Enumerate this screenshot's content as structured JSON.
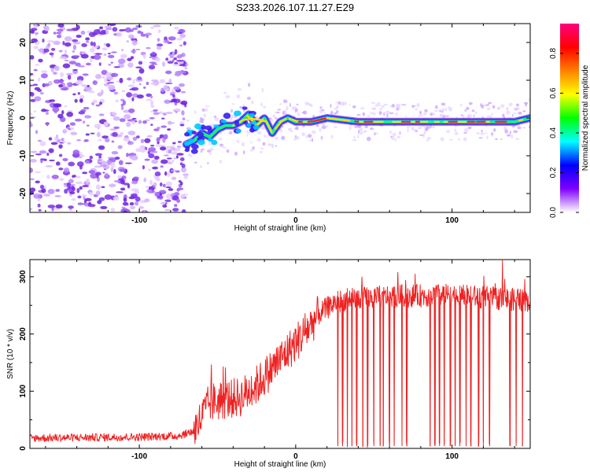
{
  "title": "S233.2026.107.11.27.E29",
  "chart_data": [
    {
      "type": "heatmap",
      "name": "spectrogram",
      "xlabel": "Height of straight line (km)",
      "ylabel": "Frequency (Hz)",
      "xlim": [
        -170,
        150
      ],
      "ylim": [
        -25,
        25
      ],
      "x_ticks": [
        -100,
        0,
        100
      ],
      "x_tick_labels": [
        "-100",
        "0",
        "100"
      ],
      "y_ticks": [
        -20,
        -10,
        0,
        10,
        20
      ],
      "y_tick_labels": [
        "-20",
        "-10",
        "0",
        "10",
        "20"
      ],
      "noise_region": [
        -170,
        -70
      ],
      "signal_track": {
        "x": [
          -70,
          -65,
          -60,
          -55,
          -50,
          -45,
          -40,
          -35,
          -30,
          -25,
          -20,
          -15,
          -10,
          -5,
          0,
          10,
          20,
          40,
          60,
          80,
          100,
          120,
          140,
          150
        ],
        "y": [
          -7,
          -6,
          -4,
          -5,
          -3,
          -2,
          -2,
          -1,
          1,
          -2,
          0,
          -4,
          -1,
          0,
          -1,
          -1,
          0,
          -1,
          -1,
          -1,
          -1,
          -1,
          -1,
          0
        ]
      },
      "colorbar": {
        "label": "Normalized spectral amplitude",
        "range": [
          0,
          0.95
        ],
        "ticks": [
          0,
          0.2,
          0.4,
          0.6,
          0.8
        ],
        "tick_labels": [
          "0.0",
          "0.2",
          "0.4",
          "0.6",
          "0.8"
        ],
        "colors": [
          "#ffffff",
          "#8000ff",
          "#0000ff",
          "#00ffff",
          "#00ff00",
          "#ffff00",
          "#ff8000",
          "#ff0000",
          "#ff0080"
        ]
      }
    },
    {
      "type": "line",
      "name": "snr",
      "color": "#ee2222",
      "xlabel": "Height of straight line (km)",
      "ylabel": "SNR (10 * v/v)",
      "xlim": [
        -170,
        150
      ],
      "ylim": [
        0,
        330
      ],
      "x_ticks": [
        -100,
        0,
        100
      ],
      "x_tick_labels": [
        "-100",
        "0",
        "100"
      ],
      "y_ticks": [
        0,
        100,
        200,
        300
      ],
      "y_tick_labels": [
        "0",
        "100",
        "200",
        "300"
      ],
      "envelope": {
        "x": [
          -170,
          -100,
          -75,
          -65,
          -55,
          -45,
          -35,
          -25,
          -15,
          -5,
          5,
          15,
          25,
          35,
          60,
          100,
          130,
          150
        ],
        "y": [
          18,
          20,
          22,
          30,
          80,
          85,
          90,
          110,
          140,
          170,
          200,
          235,
          255,
          262,
          266,
          268,
          262,
          258
        ]
      },
      "dropouts_x": [
        27,
        30,
        33,
        36,
        39,
        43,
        46,
        50,
        54,
        56,
        60,
        63,
        68,
        71,
        86,
        89,
        92,
        95,
        99,
        102,
        105,
        109,
        112,
        117,
        120,
        124,
        137,
        141,
        145
      ]
    }
  ]
}
